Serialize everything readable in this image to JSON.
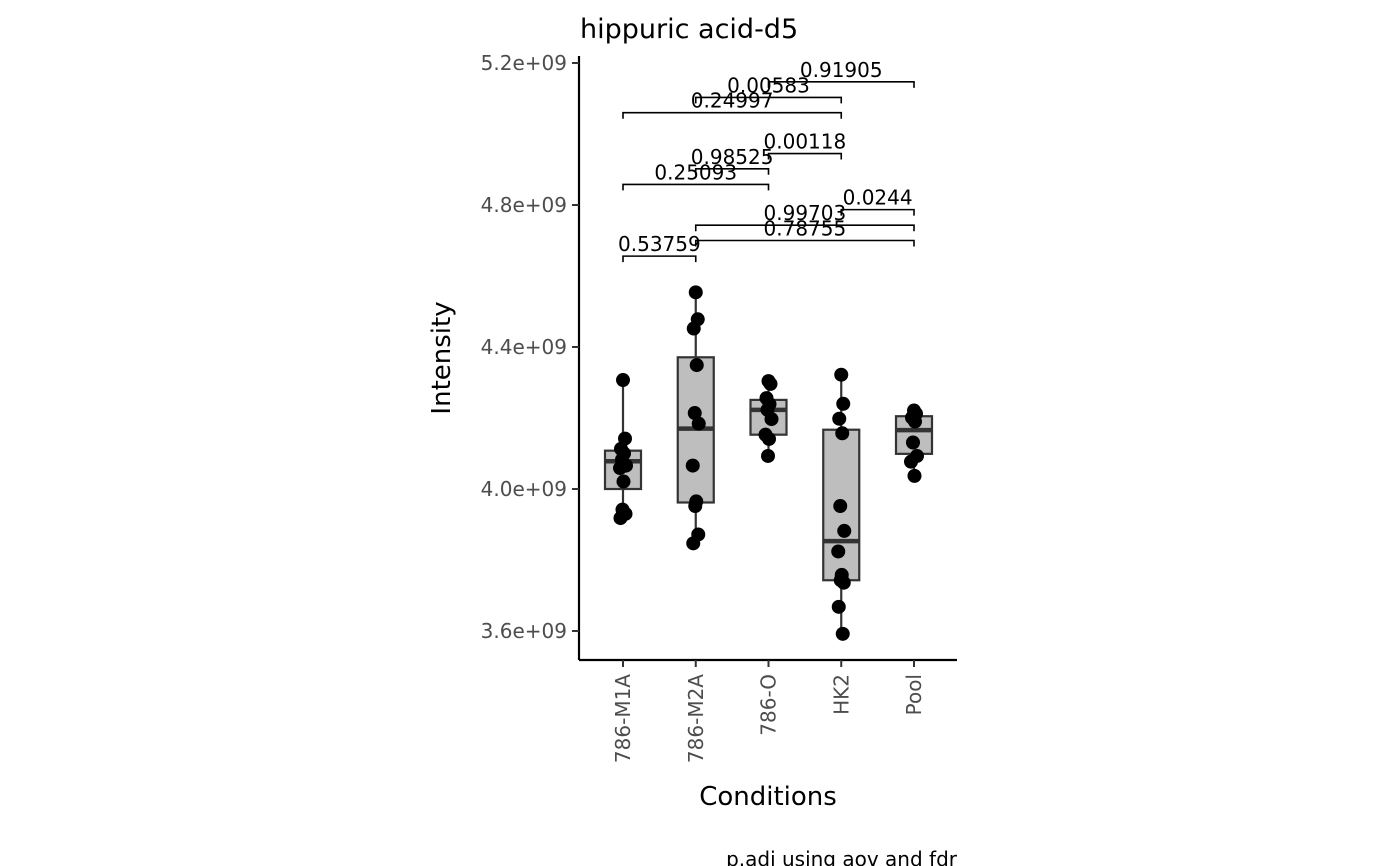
{
  "chart_data": {
    "type": "box",
    "title": "hippuric acid-d5",
    "xlabel": "Conditions",
    "ylabel": "Intensity",
    "caption": "p.adj using  aov and fdr",
    "ylim": [
      3515000000.0,
      5215000000.0
    ],
    "yticks": [
      {
        "value": 3600000000.0,
        "label": "3.6e+09"
      },
      {
        "value": 4000000000.0,
        "label": "4.0e+09"
      },
      {
        "value": 4400000000.0,
        "label": "4.4e+09"
      },
      {
        "value": 4800000000.0,
        "label": "4.8e+09"
      },
      {
        "value": 5200000000.0,
        "label": "5.2e+09"
      }
    ],
    "categories": [
      "786-M1A",
      "786-M2A",
      "786-O",
      "HK2",
      "Pool"
    ],
    "boxes": [
      {
        "category": "786-M1A",
        "q1": 4000000000.0,
        "median": 4078000000.0,
        "q3": 4108000000.0,
        "whisker_low": 3918000000.0,
        "whisker_high": 4307000000.0
      },
      {
        "category": "786-M2A",
        "q1": 3962000000.0,
        "median": 4170000000.0,
        "q3": 4371000000.0,
        "whisker_low": 3844000000.0,
        "whisker_high": 4554000000.0
      },
      {
        "category": "786-O",
        "q1": 4153000000.0,
        "median": 4223000000.0,
        "q3": 4251000000.0,
        "whisker_low": 4093000000.0,
        "whisker_high": 4304000000.0
      },
      {
        "category": "HK2",
        "q1": 3743000000.0,
        "median": 3853000000.0,
        "q3": 4167000000.0,
        "whisker_low": 3592000000.0,
        "whisker_high": 4322000000.0
      },
      {
        "category": "Pool",
        "q1": 4099000000.0,
        "median": 4166000000.0,
        "q3": 4205000000.0,
        "whisker_low": 4037000000.0,
        "whisker_high": 4221000000.0
      }
    ],
    "points": [
      {
        "category": "786-M1A",
        "values": [
          4307000000.0,
          4142000000.0,
          4113000000.0,
          4100000000.0,
          4083000000.0,
          4066000000.0,
          4059000000.0,
          4021000000.0,
          3942000000.0,
          3930000000.0,
          3918000000.0
        ]
      },
      {
        "category": "786-M2A",
        "values": [
          4554000000.0,
          4478000000.0,
          4452000000.0,
          4349000000.0,
          4214000000.0,
          4184000000.0,
          4066000000.0,
          3965000000.0,
          3952000000.0,
          3872000000.0,
          3847000000.0
        ]
      },
      {
        "category": "786-O",
        "values": [
          4304000000.0,
          4296000000.0,
          4256000000.0,
          4239000000.0,
          4223000000.0,
          4197000000.0,
          4153000000.0,
          4141000000.0,
          4093000000.0
        ]
      },
      {
        "category": "HK2",
        "values": [
          4322000000.0,
          4240000000.0,
          4198000000.0,
          4157000000.0,
          3952000000.0,
          3882000000.0,
          3824000000.0,
          3758000000.0,
          3743000000.0,
          3736000000.0,
          3668000000.0,
          3592000000.0
        ]
      },
      {
        "category": "Pool",
        "values": [
          4221000000.0,
          4212000000.0,
          4201000000.0,
          4190000000.0,
          4131000000.0,
          4093000000.0,
          4077000000.0,
          4037000000.0
        ]
      }
    ],
    "comparisons": [
      {
        "group1": "786-M1A",
        "group2": "786-M2A",
        "p": "0.53759",
        "y": 4656000000.0
      },
      {
        "group1": "786-M2A",
        "group2": "Pool",
        "p": "0.78755",
        "y": 4700000000.0
      },
      {
        "group1": "786-M2A",
        "group2": "Pool",
        "p": "0.99703",
        "y": 4743000000.0
      },
      {
        "group1": "HK2",
        "group2": "Pool",
        "p": "0.0244",
        "y": 4787000000.0
      },
      {
        "group1": "786-M1A",
        "group2": "786-O",
        "p": "0.25093",
        "y": 4858000000.0
      },
      {
        "group1": "786-M2A",
        "group2": "786-O",
        "p": "0.98525",
        "y": 4902000000.0
      },
      {
        "group1": "786-O",
        "group2": "HK2",
        "p": "0.00118",
        "y": 4945000000.0
      },
      {
        "group1": "786-M1A",
        "group2": "HK2",
        "p": "0.24997",
        "y": 5060000000.0
      },
      {
        "group1": "786-M2A",
        "group2": "HK2",
        "p": "0.00583",
        "y": 5103000000.0
      },
      {
        "group1": "786-O",
        "group2": "Pool",
        "p": "0.91905",
        "y": 5147000000.0
      }
    ],
    "colors": {
      "box_fill": "#bebebe",
      "box_line": "#333333",
      "point": "#000000",
      "tick_label": "#4d4d4d"
    }
  }
}
